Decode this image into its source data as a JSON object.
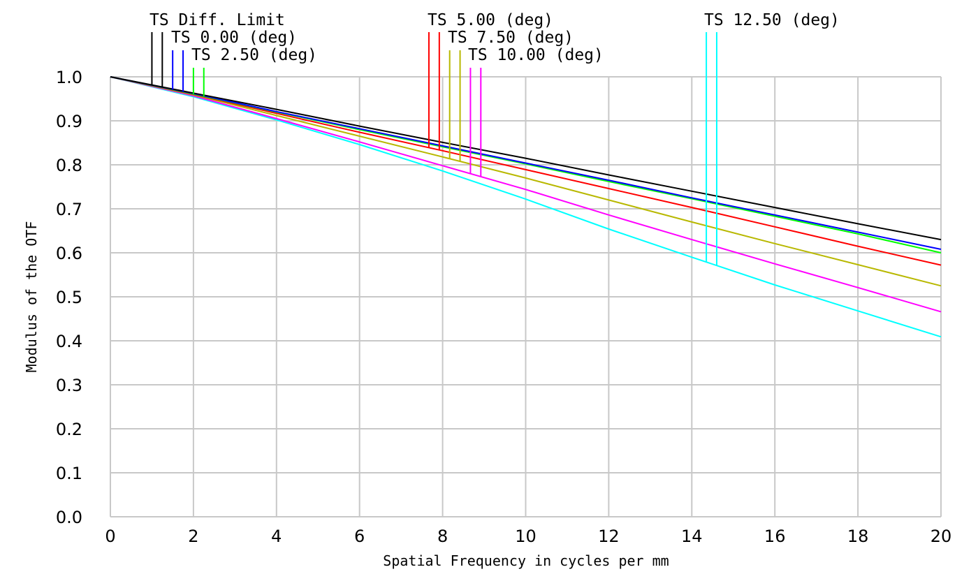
{
  "chart_data": {
    "type": "line",
    "xlabel": "Spatial Frequency in cycles per mm",
    "ylabel": "Modulus of the OTF",
    "xlim": [
      0,
      20
    ],
    "ylim": [
      0,
      1
    ],
    "x_ticks": [
      "0",
      "2",
      "4",
      "6",
      "8",
      "10",
      "12",
      "14",
      "16",
      "18",
      "20"
    ],
    "y_ticks": [
      "0.0",
      "0.1",
      "0.2",
      "0.3",
      "0.4",
      "0.5",
      "0.6",
      "0.7",
      "0.8",
      "0.9",
      "1.0"
    ],
    "grid": true,
    "legend_placement": "top",
    "x": [
      0,
      2,
      4,
      6,
      8,
      10,
      12,
      14,
      16,
      18,
      20
    ],
    "series": [
      {
        "name": "TS Diff. Limit",
        "color": "#000000",
        "values": [
          1.0,
          0.963,
          0.926,
          0.888,
          0.851,
          0.815,
          0.777,
          0.74,
          0.703,
          0.666,
          0.63
        ]
      },
      {
        "name": "TS 0.00 (deg)",
        "color": "#0000ff",
        "values": [
          1.0,
          0.962,
          0.921,
          0.882,
          0.843,
          0.804,
          0.765,
          0.725,
          0.686,
          0.647,
          0.608
        ]
      },
      {
        "name": "TS 2.50 (deg)",
        "color": "#00ff00",
        "values": [
          1.0,
          0.961,
          0.92,
          0.88,
          0.841,
          0.802,
          0.762,
          0.723,
          0.683,
          0.643,
          0.6
        ]
      },
      {
        "name": "TS 5.00 (deg)",
        "color": "#ff0000",
        "values": [
          1.0,
          0.96,
          0.917,
          0.874,
          0.832,
          0.789,
          0.746,
          0.703,
          0.659,
          0.615,
          0.572
        ]
      },
      {
        "name": "TS 7.50 (deg)",
        "color": "#b8b800",
        "values": [
          1.0,
          0.959,
          0.912,
          0.865,
          0.818,
          0.77,
          0.72,
          0.67,
          0.621,
          0.573,
          0.525
        ]
      },
      {
        "name": "TS 10.00 (deg)",
        "color": "#ff00ff",
        "values": [
          1.0,
          0.957,
          0.905,
          0.852,
          0.798,
          0.744,
          0.686,
          0.63,
          0.575,
          0.521,
          0.466
        ]
      },
      {
        "name": "TS 12.50 (deg)",
        "color": "#00ffff",
        "values": [
          1.0,
          0.955,
          0.902,
          0.846,
          0.786,
          0.722,
          0.654,
          0.59,
          0.527,
          0.468,
          0.409
        ]
      }
    ]
  }
}
